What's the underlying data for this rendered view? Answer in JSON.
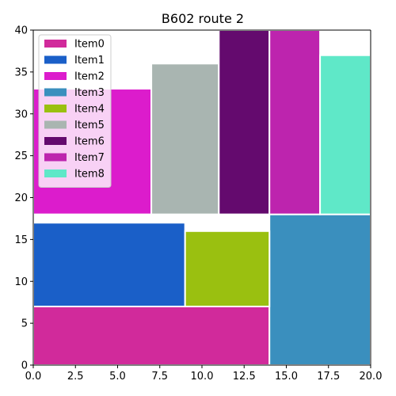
{
  "chart_data": {
    "type": "treemap",
    "title": "B602 route 2",
    "xlabel": "",
    "ylabel": "",
    "xlim": [
      0,
      20
    ],
    "ylim": [
      0,
      40
    ],
    "x_ticks": [
      "0.0",
      "2.5",
      "5.0",
      "7.5",
      "10.0",
      "12.5",
      "15.0",
      "17.5",
      "20.0"
    ],
    "y_ticks": [
      "0",
      "5",
      "10",
      "15",
      "20",
      "25",
      "30",
      "35",
      "40"
    ],
    "legend_position": "upper-left",
    "grid": false,
    "items": [
      {
        "label": "Item0",
        "color": "#d12a9b",
        "x0": 0,
        "x1": 14,
        "y0": 0,
        "y1": 7
      },
      {
        "label": "Item1",
        "color": "#1a5fc8",
        "x0": 0,
        "x1": 9,
        "y0": 7,
        "y1": 17
      },
      {
        "label": "Item2",
        "color": "#dc1ccc",
        "x0": 0,
        "x1": 7,
        "y0": 18,
        "y1": 33
      },
      {
        "label": "Item3",
        "color": "#3a8fbe",
        "x0": 14,
        "x1": 20,
        "y0": 0,
        "y1": 18
      },
      {
        "label": "Item4",
        "color": "#9ac010",
        "x0": 9,
        "x1": 14,
        "y0": 7,
        "y1": 16
      },
      {
        "label": "Item5",
        "color": "#a9b5b1",
        "x0": 7,
        "x1": 11,
        "y0": 18,
        "y1": 36
      },
      {
        "label": "Item6",
        "color": "#640a6e",
        "x0": 11,
        "x1": 14,
        "y0": 18,
        "y1": 40
      },
      {
        "label": "Item7",
        "color": "#bd24ae",
        "x0": 14,
        "x1": 17,
        "y0": 18,
        "y1": 40
      },
      {
        "label": "Item8",
        "color": "#5fe8c8",
        "x0": 17,
        "x1": 20,
        "y0": 18,
        "y1": 37
      }
    ]
  }
}
